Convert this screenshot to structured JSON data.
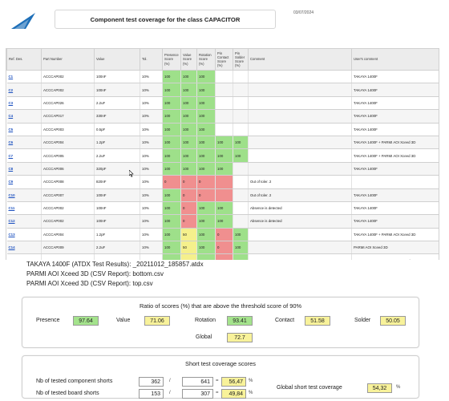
{
  "header": {
    "title": "Component test coverage for the class CAPACITOR",
    "date": "03/07/2024",
    "logo_color": "#1e6fb8"
  },
  "table": {
    "columns": [
      "Ref. Des.",
      "Part Number",
      "Value",
      "Tol.",
      "Presence Score (%)",
      "Value Score (%)",
      "Rotation Score (%)",
      "Pin Contact Score (%)",
      "Pin Solder Score (%)",
      "Comment",
      "User's comment"
    ],
    "rows": [
      {
        "ref": "C1",
        "part": "ACCCAP002",
        "value": "100nF",
        "tol": "10%",
        "presence": "100",
        "value_score": "100",
        "rotation": "100",
        "contact": "",
        "solder": "",
        "comment": "",
        "user_comment": "TAKAYA 1400F",
        "cls": [
          "g",
          "g",
          "g",
          "",
          ""
        ]
      },
      {
        "ref": "C2",
        "part": "ACCCAP002",
        "value": "100nF",
        "tol": "10%",
        "presence": "100",
        "value_score": "100",
        "rotation": "100",
        "contact": "",
        "solder": "",
        "comment": "",
        "user_comment": "TAKAYA 1400F",
        "cls": [
          "g",
          "g",
          "g",
          "",
          ""
        ]
      },
      {
        "ref": "C3",
        "part": "ACCCAP026",
        "value": "2.2uF",
        "tol": "10%",
        "presence": "100",
        "value_score": "100",
        "rotation": "100",
        "contact": "",
        "solder": "",
        "comment": "",
        "user_comment": "TAKAYA 1400F",
        "cls": [
          "g",
          "g",
          "g",
          "",
          ""
        ]
      },
      {
        "ref": "C4",
        "part": "ACCCAP017",
        "value": "330nF",
        "tol": "10%",
        "presence": "100",
        "value_score": "100",
        "rotation": "100",
        "contact": "",
        "solder": "",
        "comment": "",
        "user_comment": "TAKAYA 1400F",
        "cls": [
          "g",
          "g",
          "g",
          "",
          ""
        ]
      },
      {
        "ref": "C5",
        "part": "ACCCAP003",
        "value": "0.5pF",
        "tol": "10%",
        "presence": "100",
        "value_score": "100",
        "rotation": "100",
        "contact": "",
        "solder": "",
        "comment": "",
        "user_comment": "TAKAYA 1400F",
        "cls": [
          "g",
          "g",
          "g",
          "",
          ""
        ]
      },
      {
        "ref": "C6",
        "part": "ACCCAP004",
        "value": "1.2pF",
        "tol": "10%",
        "presence": "100",
        "value_score": "100",
        "rotation": "100",
        "contact": "100",
        "solder": "100",
        "comment": "",
        "user_comment": "TAKAYA 1400F + PARMI AOI Xceed 3D",
        "cls": [
          "g",
          "g",
          "g",
          "g",
          "g"
        ]
      },
      {
        "ref": "C7",
        "part": "ACCCAP005",
        "value": "2.2uF",
        "tol": "10%",
        "presence": "100",
        "value_score": "100",
        "rotation": "100",
        "contact": "100",
        "solder": "100",
        "comment": "",
        "user_comment": "TAKAYA 1400F + PARMI AOI Xceed 3D",
        "cls": [
          "g",
          "g",
          "g",
          "g",
          "g"
        ]
      },
      {
        "ref": "C8",
        "part": "ACCCAP006",
        "value": "320pF",
        "tol": "10%",
        "presence": "100",
        "value_score": "100",
        "rotation": "100",
        "contact": "100",
        "solder": "",
        "comment": "",
        "user_comment": "TAKAYA 1400F",
        "cls": [
          "g",
          "g",
          "g",
          "g",
          ""
        ]
      },
      {
        "ref": "C9",
        "part": "ACCCAP008",
        "value": "820nF",
        "tol": "10%",
        "presence": "0",
        "value_score": "0",
        "rotation": "0",
        "contact": "",
        "solder": "",
        "comment": "Out of toler. 2",
        "user_comment": "",
        "cls": [
          "r",
          "r",
          "r",
          "r",
          ""
        ]
      },
      {
        "ref": "C10",
        "part": "ACCCAP007",
        "value": "100nF",
        "tol": "10%",
        "presence": "100",
        "value_score": "0",
        "rotation": "0",
        "contact": "",
        "solder": "",
        "comment": "Out of toler. 2",
        "user_comment": "TAKAYA 1400F",
        "cls": [
          "g",
          "r",
          "r",
          "r",
          ""
        ]
      },
      {
        "ref": "C11",
        "part": "ACCCAP002",
        "value": "100nF",
        "tol": "10%",
        "presence": "100",
        "value_score": "0",
        "rotation": "100",
        "contact": "100",
        "solder": "",
        "comment": "Absence is detected",
        "user_comment": "TAKAYA 1400F",
        "cls": [
          "g",
          "r",
          "g",
          "g",
          ""
        ]
      },
      {
        "ref": "C12",
        "part": "ACCCAP002",
        "value": "100nF",
        "tol": "10%",
        "presence": "100",
        "value_score": "0",
        "rotation": "100",
        "contact": "100",
        "solder": "",
        "comment": "Absence is detected",
        "user_comment": "TAKAYA 1400F",
        "cls": [
          "g",
          "r",
          "g",
          "g",
          ""
        ]
      },
      {
        "ref": "C13",
        "part": "ACCCAP004",
        "value": "1.2pF",
        "tol": "10%",
        "presence": "100",
        "value_score": "50",
        "rotation": "100",
        "contact": "0",
        "solder": "100",
        "comment": "",
        "user_comment": "TAKAYA 1400F + PARMI AOI Xceed 3D",
        "cls": [
          "g",
          "y",
          "g",
          "r",
          "g"
        ]
      },
      {
        "ref": "C14",
        "part": "ACCCAP009",
        "value": "2.2uF",
        "tol": "10%",
        "presence": "100",
        "value_score": "50",
        "rotation": "100",
        "contact": "0",
        "solder": "100",
        "comment": "",
        "user_comment": "PARMI AOI Xceed 3D",
        "cls": [
          "g",
          "y",
          "g",
          "r",
          "g"
        ]
      },
      {
        "ref": "C15",
        "part": "ACCCAP008",
        "value": "820nF",
        "tol": "10%",
        "presence": "100",
        "value_score": "50",
        "rotation": "100",
        "contact": "0",
        "solder": "100",
        "comment": "",
        "user_comment": "TAKAYA 1400F + PARMI AOI Xceed 3D",
        "cls": [
          "g",
          "y",
          "g",
          "r",
          "g"
        ]
      },
      {
        "ref": "C16",
        "part": "ACCCAP008",
        "value": "820nF",
        "tol": "10%",
        "presence": "100",
        "value_score": "50",
        "rotation": "100",
        "contact": "0",
        "solder": "",
        "comment": "",
        "user_comment": "",
        "cls": [
          "g",
          "y",
          "g",
          "r",
          ""
        ]
      }
    ]
  },
  "files": {
    "line1": "TAKAYA 1400F (ATDX Test Results): _20211012_185857.atdx",
    "line2": "PARMI AOI Xceed 3D (CSV Report): bottom.csv",
    "line3": "PARMI AOI Xceed 3D (CSV Report): top.csv"
  },
  "ratio": {
    "title": "Ratio of scores (%) that are above the threshold score of 90%",
    "presence_label": "Presence",
    "presence_value": "97.64",
    "value_label": "Value",
    "value_value": "71.06",
    "rotation_label": "Rotation",
    "rotation_value": "93.41",
    "contact_label": "Contact",
    "contact_value": "51.58",
    "solder_label": "Solder",
    "solder_value": "50.05",
    "global_label": "Global",
    "global_value": "72.7"
  },
  "short": {
    "title": "Short test coverage scores",
    "component_label": "Nb of tested component shorts",
    "component_tested": "362",
    "component_total": "641",
    "component_pct": "56,47",
    "board_label": "Nb of tested board shorts",
    "board_tested": "153",
    "board_total": "307",
    "board_pct": "49,84",
    "slash": "/",
    "equals": "=",
    "percent": "%",
    "global_label": "Global short test coverage",
    "global_value": "54,32"
  }
}
